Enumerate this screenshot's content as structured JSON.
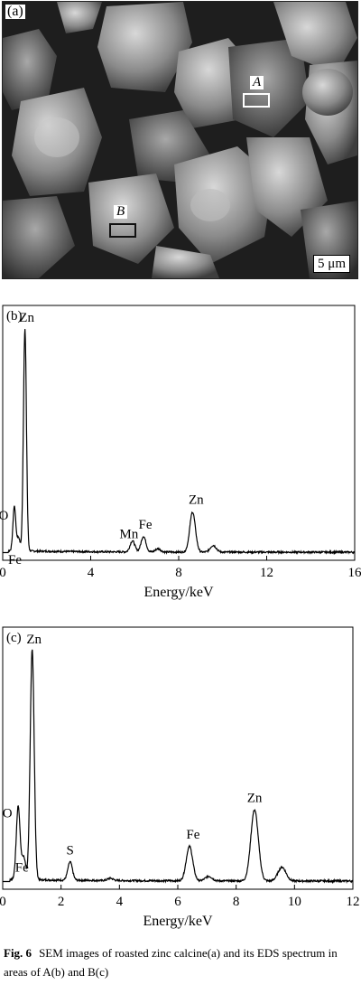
{
  "panel_a": {
    "label": "(a)",
    "region_a": "A",
    "region_b": "B",
    "scale_bar": "5 μm"
  },
  "chart_data": [
    {
      "type": "line",
      "panel": "(b)",
      "xlabel": "Energy/keV",
      "ylabel": "",
      "xlim": [
        0,
        16
      ],
      "xticks": [
        0,
        4,
        8,
        12,
        16
      ],
      "peaks": [
        {
          "label": "O",
          "x": 0.53,
          "y": 0.2
        },
        {
          "label": "Fe",
          "x": 0.72,
          "y": 0.06
        },
        {
          "label": "Zn",
          "x": 1.01,
          "y": 1.0
        },
        {
          "label": "Mn",
          "x": 5.9,
          "y": 0.05
        },
        {
          "label": "Fe",
          "x": 6.4,
          "y": 0.07
        },
        {
          "label": "Zn",
          "x": 8.63,
          "y": 0.18
        }
      ],
      "minor_peaks": [
        {
          "x": 7.06,
          "y": 0.015
        },
        {
          "x": 9.57,
          "y": 0.03
        }
      ]
    },
    {
      "type": "line",
      "panel": "(c)",
      "xlabel": "Energy/keV",
      "ylabel": "",
      "xlim": [
        0,
        12
      ],
      "xticks": [
        0,
        2,
        4,
        6,
        8,
        10,
        12
      ],
      "peaks": [
        {
          "label": "O",
          "x": 0.53,
          "y": 0.32
        },
        {
          "label": "Fe",
          "x": 0.72,
          "y": 0.1
        },
        {
          "label": "Zn",
          "x": 1.01,
          "y": 1.0
        },
        {
          "label": "S",
          "x": 2.31,
          "y": 0.08
        },
        {
          "label": "Fe",
          "x": 6.4,
          "y": 0.15
        },
        {
          "label": "Zn",
          "x": 8.63,
          "y": 0.31
        }
      ],
      "minor_peaks": [
        {
          "x": 3.69,
          "y": 0.01
        },
        {
          "x": 7.06,
          "y": 0.02
        },
        {
          "x": 9.57,
          "y": 0.06
        }
      ]
    }
  ],
  "caption": {
    "fig": "Fig. 6",
    "text": "SEM images of roasted zinc calcine(a) and its EDS spectrum in areas of A(b) and B(c)"
  }
}
